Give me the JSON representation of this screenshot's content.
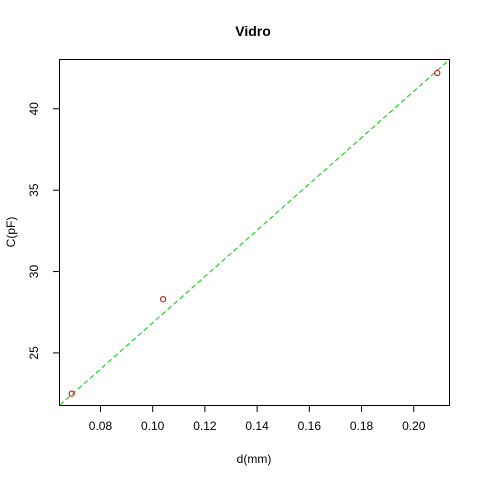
{
  "chart_data": {
    "type": "scatter",
    "title": "Vidro",
    "xlabel": "d(mm)",
    "ylabel": "C(pF)",
    "xlim": [
      0.0645,
      0.2135
    ],
    "ylim": [
      21.8,
      43.0
    ],
    "x_ticks": [
      0.08,
      0.1,
      0.12,
      0.14,
      0.16,
      0.18,
      0.2
    ],
    "x_tick_labels": [
      "0.08",
      "0.10",
      "0.12",
      "0.14",
      "0.16",
      "0.18",
      "0.20"
    ],
    "y_ticks": [
      25,
      30,
      35,
      40
    ],
    "y_tick_labels": [
      "25",
      "30",
      "35",
      "40"
    ],
    "series": [
      {
        "type": "scatter",
        "x": [
          0.069,
          0.104,
          0.209
        ],
        "y": [
          22.5,
          28.3,
          42.2
        ],
        "color": "#cc0000"
      },
      {
        "type": "line",
        "x": [
          0.0645,
          0.2135
        ],
        "y": [
          21.8,
          43.0
        ],
        "color": "#00cc00"
      }
    ],
    "grid": false,
    "legend": "none"
  }
}
